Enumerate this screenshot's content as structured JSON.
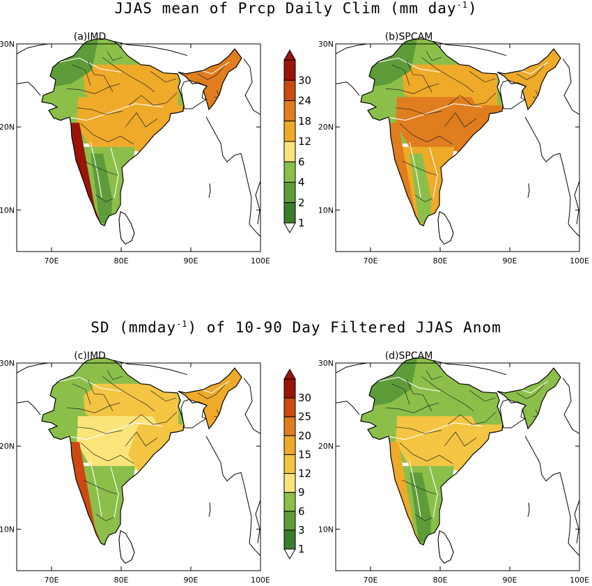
{
  "figure": {
    "title_top": {
      "main": "JJAS mean of Prcp Daily Clim (mm day",
      "sup": "-1",
      "end": ")"
    },
    "title_bottom": {
      "main": "SD (mmday",
      "sup": "-1",
      "end": ") of 10-90 Day Filtered JJAS Anom"
    }
  },
  "colors": {
    "dark_green": "#3a7d2a",
    "mid_green": "#5e9c3a",
    "light_green": "#8cbf4a",
    "light_yellow": "#fbe57a",
    "yellow": "#f3c542",
    "orange_light": "#efaa2a",
    "orange": "#e07d1e",
    "red_orange": "#cc4a12",
    "dark_red": "#9a1408",
    "land_line": "#000000",
    "contour_line": "#ffffff"
  },
  "chart_data": [
    {
      "type": "map",
      "panel": "a",
      "title": "(a)IMD",
      "x_ticks": [
        "70E",
        "80E",
        "90E",
        "100E"
      ],
      "y_ticks": [
        "10N",
        "20N",
        "30N"
      ],
      "lon_range": [
        65,
        100
      ],
      "lat_range": [
        5,
        30
      ],
      "region_values": {
        "northwest": 2,
        "north": 4,
        "gangetic": 12,
        "northeast": 18,
        "central": 12,
        "east": 12,
        "west_coast": 30,
        "south": 4,
        "western_ghats_lee": 2
      }
    },
    {
      "type": "map",
      "panel": "b",
      "title": "(b)SPCAM",
      "x_ticks": [
        "70E",
        "80E",
        "90E",
        "100E"
      ],
      "y_ticks": [
        "10N",
        "20N",
        "30N"
      ],
      "lon_range": [
        65,
        100
      ],
      "lat_range": [
        5,
        30
      ],
      "region_values": {
        "northwest": 2,
        "north": 4,
        "gangetic": 12,
        "northeast": 12,
        "central": 18,
        "east": 18,
        "west_coast": 18,
        "south": 12,
        "western_ghats_lee": 4
      }
    },
    {
      "type": "map",
      "panel": "c",
      "title": "(c)IMD",
      "x_ticks": [
        "70E",
        "80E",
        "90E",
        "100E"
      ],
      "y_ticks": [
        "10N",
        "20N",
        "30N"
      ],
      "lon_range": [
        65,
        100
      ],
      "lat_range": [
        5,
        30
      ],
      "region_values": {
        "northwest": 6,
        "north": 6,
        "gangetic": 12,
        "northeast": 15,
        "central": 9,
        "east": 12,
        "west_coast": 25,
        "south": 6,
        "western_ghats_lee": 6
      }
    },
    {
      "type": "map",
      "panel": "d",
      "title": "(d)SPCAM",
      "x_ticks": [
        "70E",
        "80E",
        "90E",
        "100E"
      ],
      "y_ticks": [
        "10N",
        "20N",
        "30N"
      ],
      "lon_range": [
        65,
        100
      ],
      "lat_range": [
        5,
        30
      ],
      "region_values": {
        "northwest": 3,
        "north": 6,
        "gangetic": 6,
        "northeast": 6,
        "central": 12,
        "east": 12,
        "west_coast": 15,
        "south": 6,
        "western_ghats_lee": 3
      }
    }
  ],
  "colorbar_top": {
    "labels": [
      "30",
      "24",
      "18",
      "12",
      "6",
      "4",
      "2",
      "1"
    ],
    "levels": [
      1,
      2,
      4,
      6,
      12,
      18,
      24,
      30
    ],
    "colors": [
      "#9a1408",
      "#cc4a12",
      "#e07d1e",
      "#efaa2a",
      "#fbe57a",
      "#8cbf4a",
      "#5e9c3a",
      "#3a7d2a"
    ]
  },
  "colorbar_bottom": {
    "labels": [
      "30",
      "25",
      "20",
      "15",
      "12",
      "9",
      "6",
      "3",
      "1"
    ],
    "levels": [
      1,
      3,
      6,
      9,
      12,
      15,
      20,
      25,
      30
    ],
    "colors": [
      "#9a1408",
      "#cc4a12",
      "#e07d1e",
      "#efaa2a",
      "#f3c542",
      "#fbe57a",
      "#8cbf4a",
      "#5e9c3a",
      "#3a7d2a"
    ]
  }
}
